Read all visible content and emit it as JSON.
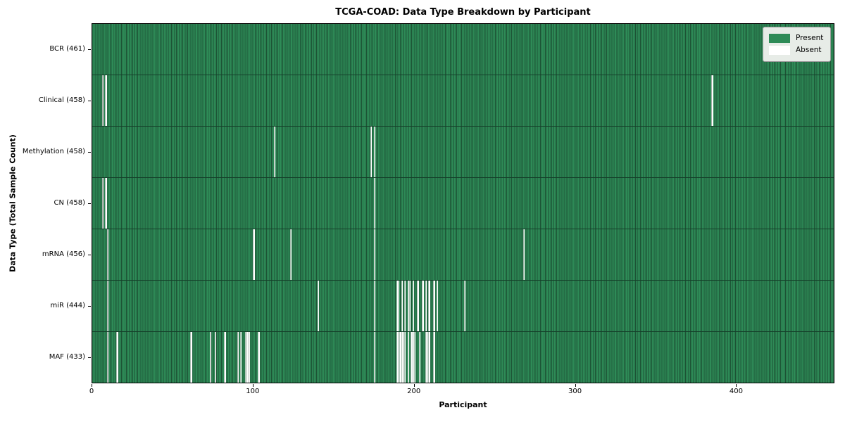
{
  "title": "TCGA-COAD: Data Type Breakdown by Participant",
  "x_axis_label": "Participant",
  "y_axis_label": "Data Type (Total Sample Count)",
  "legend": [
    {
      "label": "Present",
      "color": "#2e8b57"
    },
    {
      "label": "Absent",
      "color": "#ffffff"
    }
  ],
  "colors": {
    "present": "#2e8b57",
    "bar_edge": "#1c5234",
    "absent": "#ffffff",
    "row_divider": "#15402a",
    "frame": "#000000"
  },
  "chart_data": {
    "type": "heatmap",
    "title": "TCGA-COAD: Data Type Breakdown by Participant",
    "xlabel": "Participant",
    "ylabel": "Data Type (Total Sample Count)",
    "legend_entries": [
      "Present",
      "Absent"
    ],
    "legend_position": "upper right",
    "grid": false,
    "total_participants": 461,
    "xlim": [
      0,
      461
    ],
    "x_ticks": [
      0,
      100,
      200,
      300,
      400
    ],
    "rows": [
      {
        "name": "BCR",
        "label": "BCR (461)",
        "present_count": 461,
        "absent_participants": []
      },
      {
        "name": "Clinical",
        "label": "Clinical (458)",
        "present_count": 458,
        "absent_participants": [
          6,
          8,
          385
        ]
      },
      {
        "name": "Methylation",
        "label": "Methylation (458)",
        "present_count": 458,
        "absent_participants": [
          113,
          173,
          175
        ]
      },
      {
        "name": "CN",
        "label": "CN (458)",
        "present_count": 458,
        "absent_participants": [
          6,
          8,
          175
        ]
      },
      {
        "name": "mRNA",
        "label": "mRNA (456)",
        "present_count": 456,
        "absent_participants": [
          9,
          100,
          123,
          175,
          268
        ]
      },
      {
        "name": "miR",
        "label": "miR (444)",
        "present_count": 444,
        "absent_participants": [
          9,
          140,
          175,
          189,
          190,
          192,
          194,
          196,
          197,
          199,
          202,
          205,
          207,
          209,
          212,
          214,
          231
        ]
      },
      {
        "name": "MAF",
        "label": "MAF (433)",
        "present_count": 433,
        "absent_participants": [
          9,
          15,
          61,
          73,
          76,
          82,
          90,
          92,
          95,
          96,
          97,
          103,
          175,
          189,
          190,
          191,
          192,
          193,
          194,
          196,
          198,
          199,
          200,
          203,
          207,
          208,
          209,
          212
        ]
      }
    ]
  }
}
